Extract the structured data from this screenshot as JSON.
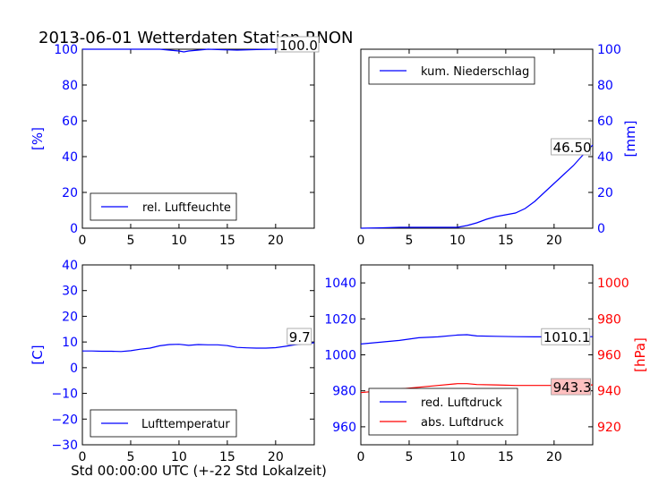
{
  "title": "2013-06-01 Wetterdaten Station RNON",
  "footer_xlabel": "Std 00:00:00 UTC (+-22 Std Lokalzeit)",
  "colors": {
    "blue": "#0000ff",
    "red": "#ff0000",
    "label_bg_red": "#ffc0c0"
  },
  "chart_data": [
    {
      "type": "line",
      "id": "humidity",
      "ylabel": "[%]",
      "xlim": [
        0,
        24
      ],
      "ylim": [
        0,
        100
      ],
      "xticks": [
        0,
        5,
        10,
        15,
        20
      ],
      "yticks": [
        0,
        20,
        40,
        60,
        80,
        100
      ],
      "legend_position": "lower-left",
      "annotation": "100.0",
      "series": [
        {
          "name": "rel. Luftfeuchte",
          "color": "#0000ff",
          "x": [
            0,
            2,
            4,
            6,
            8,
            9,
            10,
            10.5,
            11,
            12,
            13,
            14,
            16,
            18,
            20,
            22,
            24
          ],
          "y": [
            100,
            100,
            100,
            100,
            100,
            99.5,
            99,
            98.5,
            99,
            99.5,
            100,
            99.8,
            99.5,
            99.8,
            100,
            100,
            100
          ]
        }
      ]
    },
    {
      "type": "line",
      "id": "precip",
      "ylabel": "[mm]",
      "xlim": [
        0,
        24
      ],
      "ylim": [
        0,
        100
      ],
      "xticks": [
        0,
        5,
        10,
        15,
        20
      ],
      "yticks": [
        0,
        20,
        40,
        60,
        80,
        100
      ],
      "legend_position": "upper-left",
      "annotation": "46.50",
      "series": [
        {
          "name": "kum. Niederschlag",
          "color": "#0000ff",
          "x": [
            0,
            2,
            4,
            6,
            8,
            10,
            11,
            12,
            13,
            14,
            15,
            16,
            17,
            18,
            19,
            20,
            21,
            22,
            23,
            24
          ],
          "y": [
            0,
            0.2,
            0.5,
            0.5,
            0.5,
            0.5,
            1.5,
            3,
            5,
            6.5,
            7.5,
            8.5,
            11,
            15,
            20,
            25,
            30,
            35,
            41,
            46.5
          ]
        }
      ]
    },
    {
      "type": "line",
      "id": "temperature",
      "ylabel": "[C]",
      "xlim": [
        0,
        24
      ],
      "ylim": [
        -30,
        40
      ],
      "xticks": [
        0,
        5,
        10,
        15,
        20
      ],
      "yticks": [
        -30,
        -20,
        -10,
        0,
        10,
        20,
        30,
        40
      ],
      "legend_position": "lower-left",
      "annotation": "9.7",
      "series": [
        {
          "name": "Lufttemperatur",
          "color": "#0000ff",
          "x": [
            0,
            1,
            2,
            3,
            4,
            5,
            6,
            7,
            8,
            9,
            10,
            11,
            12,
            13,
            14,
            15,
            16,
            17,
            18,
            19,
            20,
            21,
            22,
            23,
            24
          ],
          "y": [
            6.5,
            6.5,
            6.4,
            6.4,
            6.3,
            6.6,
            7.2,
            7.6,
            8.5,
            9.0,
            9.1,
            8.7,
            9.0,
            8.9,
            8.9,
            8.6,
            7.9,
            7.7,
            7.6,
            7.6,
            7.8,
            8.3,
            8.9,
            9.3,
            9.7
          ]
        }
      ]
    },
    {
      "type": "line",
      "id": "pressure",
      "ylabel": "[hPa]",
      "xlim": [
        0,
        24
      ],
      "ylim": [
        950,
        1050
      ],
      "ylim_right": [
        910,
        1010
      ],
      "xticks": [
        0,
        5,
        10,
        15,
        20
      ],
      "yticks": [
        960,
        980,
        1000,
        1020,
        1040
      ],
      "yticks_right": [
        920,
        940,
        960,
        980,
        1000
      ],
      "legend_position": "lower-left",
      "annotations": [
        "1010.1",
        "943.3"
      ],
      "series": [
        {
          "name": "red. Luftdruck",
          "color": "#0000ff",
          "axis": "left",
          "x": [
            0,
            2,
            4,
            6,
            8,
            10,
            11,
            12,
            14,
            16,
            18,
            20,
            22,
            24
          ],
          "y": [
            1006,
            1007,
            1008,
            1009.5,
            1010,
            1011,
            1011.2,
            1010.5,
            1010.3,
            1010.1,
            1010,
            1010,
            1010,
            1010.1
          ]
        },
        {
          "name": "abs. Luftdruck",
          "color": "#ff0000",
          "axis": "right",
          "x": [
            0,
            2,
            4,
            6,
            8,
            10,
            11,
            12,
            14,
            16,
            18,
            20,
            22,
            24
          ],
          "y": [
            939,
            940,
            941,
            942,
            943,
            944,
            944,
            943.5,
            943.3,
            943,
            943,
            943,
            943.2,
            943.3
          ]
        }
      ]
    }
  ]
}
